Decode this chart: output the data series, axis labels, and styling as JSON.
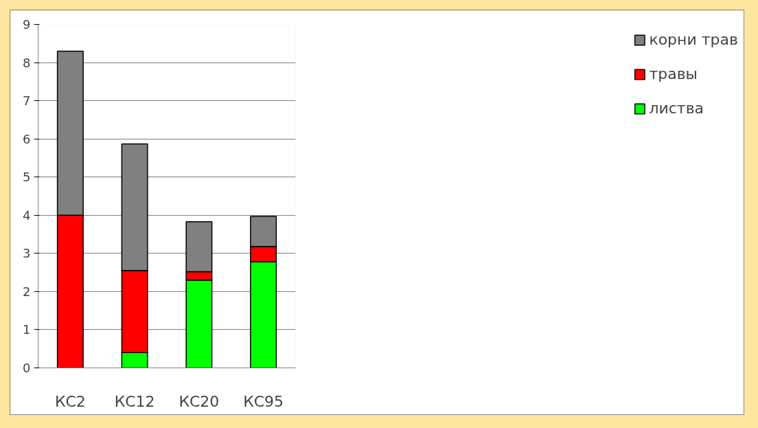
{
  "chart_data": {
    "type": "bar",
    "stacked": true,
    "categories": [
      "КС2",
      "КС12",
      "КС20",
      "КС95"
    ],
    "series": [
      {
        "name": "листва",
        "color": "#00ff00",
        "values": [
          0,
          0.4,
          2.3,
          2.78
        ]
      },
      {
        "name": "травы",
        "color": "#ff0000",
        "values": [
          4,
          2.15,
          0.22,
          0.4
        ]
      },
      {
        "name": "корни трав",
        "color": "#808080",
        "values": [
          4.3,
          3.32,
          1.31,
          0.79
        ]
      }
    ],
    "ylim": [
      0,
      9
    ],
    "yticks": [
      0,
      1,
      2,
      3,
      4,
      5,
      6,
      7,
      8,
      9
    ],
    "grid": "y",
    "legend": "right"
  }
}
